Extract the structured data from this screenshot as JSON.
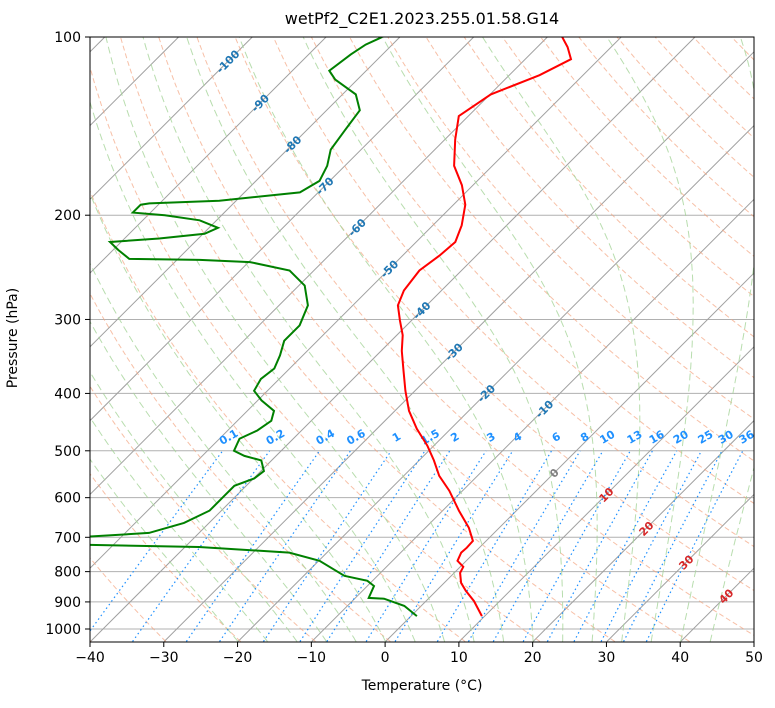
{
  "chart_data": {
    "type": "line",
    "subtype": "skew-t log-p",
    "title": "wetPf2_C2E1.2023.255.01.58.G14",
    "xlabel": "Temperature (°C)",
    "ylabel": "Pressure (hPa)",
    "xlim": [
      -40,
      50
    ],
    "ylim": [
      1050,
      100
    ],
    "xticks": [
      "−40",
      "−30",
      "−20",
      "−10",
      "0",
      "10",
      "20",
      "30",
      "40",
      "50"
    ],
    "yticks": [
      "100",
      "200",
      "300",
      "400",
      "500",
      "600",
      "700",
      "800",
      "900",
      "1000"
    ],
    "grid": true,
    "colors": {
      "temperature": "#ff0000",
      "dewpoint": "#008000",
      "isotherm": "#a0a0a0",
      "dry_adiabat": "#f4a582",
      "moist_adiabat": "#a6d49a",
      "mixing_ratio": "#1e90ff",
      "label_neg": "#1f77b4",
      "label_zero": "#808080",
      "label_pos": "#d62728"
    },
    "isotherm_labels": [
      "-100",
      "-90",
      "-80",
      "-70",
      "-60",
      "-50",
      "-40",
      "-30",
      "-20",
      "-10",
      "0",
      "10",
      "20",
      "30",
      "40"
    ],
    "mixing_ratio_labels": [
      "0.1",
      "0.2",
      "0.4",
      "0.6",
      "1",
      "1.5",
      "2",
      "3",
      "4",
      "6",
      "8",
      "10",
      "13",
      "16",
      "20",
      "25",
      "30",
      "36"
    ],
    "series": [
      {
        "name": "Temperature",
        "pressure": [
          951,
          897,
          862,
          836,
          804,
          785,
          767,
          743,
          729,
          710,
          675,
          631,
          584,
          551,
          519,
          490,
          459,
          428,
          396,
          366,
          339,
          319,
          301,
          284,
          268,
          248,
          234,
          222,
          208,
          192,
          178,
          165,
          149,
          136,
          125,
          116,
          109,
          104,
          100
        ],
        "temperature": [
          9.6,
          6.5,
          4.0,
          2.3,
          0.8,
          0.4,
          -1.2,
          -1.8,
          -1.7,
          -1.8,
          -4.1,
          -7.8,
          -11.8,
          -15.2,
          -18.0,
          -20.9,
          -24.6,
          -28.1,
          -31.3,
          -34.3,
          -37.2,
          -39.2,
          -41.6,
          -43.9,
          -45.1,
          -45.7,
          -45.0,
          -44.7,
          -46.1,
          -48.4,
          -51.5,
          -55.2,
          -58.6,
          -61.3,
          -59.9,
          -55.9,
          -53.8,
          -55.9,
          -58.0
        ]
      },
      {
        "name": "Dewpoint",
        "pressure": [
          951,
          914,
          889,
          886,
          846,
          829,
          813,
          767,
          743,
          727,
          721,
          710,
          698,
          688,
          662,
          631,
          596,
          573,
          557,
          541,
          519,
          510,
          500,
          477,
          462,
          445,
          428,
          411,
          396,
          378,
          363,
          345,
          326,
          307,
          284,
          263,
          248,
          240,
          238,
          237,
          229,
          222,
          219,
          215,
          210,
          204,
          200,
          198,
          192,
          191,
          189,
          183,
          175,
          165,
          155,
          144,
          133,
          125,
          118,
          114,
          107,
          103,
          100
        ],
        "temperature": [
          0.8,
          -2.3,
          -6.0,
          -8.2,
          -9.1,
          -10.7,
          -14.5,
          -19.9,
          -25.1,
          -38.1,
          -53.3,
          -62.0,
          -54.4,
          -46.8,
          -43.4,
          -41.6,
          -41.6,
          -41.6,
          -39.9,
          -39.6,
          -41.4,
          -44.3,
          -46.4,
          -47.3,
          -46.0,
          -45.4,
          -46.4,
          -49.5,
          -51.8,
          -52.5,
          -52.1,
          -53.1,
          -54.5,
          -54.5,
          -56.1,
          -59.2,
          -63.3,
          -69.8,
          -76.9,
          -86.6,
          -89.3,
          -91.5,
          -85.3,
          -79.8,
          -78.8,
          -82.3,
          -87.7,
          -92.4,
          -92.4,
          -91.4,
          -82.3,
          -72.5,
          -71.4,
          -72.4,
          -74.1,
          -74.8,
          -75.5,
          -78.2,
          -83.0,
          -85.0,
          -84.3,
          -83.6,
          -82.4
        ]
      }
    ]
  }
}
